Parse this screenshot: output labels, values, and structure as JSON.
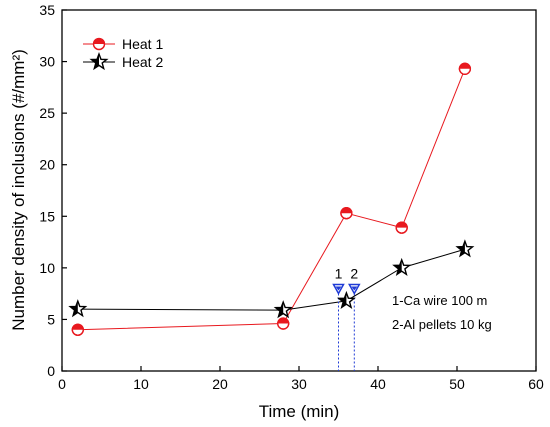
{
  "chart_data": {
    "type": "line",
    "xlabel": "Time (min)",
    "ylabel": "Number density of inclusions (#/mm²)",
    "xlim": [
      0,
      60
    ],
    "ylim": [
      0,
      35
    ],
    "xticks": [
      0,
      10,
      20,
      30,
      40,
      50,
      60
    ],
    "yticks": [
      0,
      5,
      10,
      15,
      20,
      25,
      30,
      35
    ],
    "grid": false,
    "legend_position": "top-left",
    "series": [
      {
        "name": "Heat 1",
        "color": "#e8191f",
        "marker": "half-filled-circle",
        "points": [
          [
            2,
            4.0
          ],
          [
            28,
            4.6
          ],
          [
            36,
            15.3
          ],
          [
            43,
            13.9
          ],
          [
            51,
            29.3
          ]
        ]
      },
      {
        "name": "Heat 2",
        "color": "#000000",
        "marker": "star",
        "points": [
          [
            2,
            6.0
          ],
          [
            28,
            5.9
          ],
          [
            36,
            6.8
          ],
          [
            43,
            10.0
          ],
          [
            51,
            11.8
          ]
        ]
      }
    ],
    "events": [
      {
        "label": "1",
        "x": 35,
        "y": 8.0,
        "color": "#1f3bd6",
        "marker": "triangle-down"
      },
      {
        "label": "2",
        "x": 37,
        "y": 8.0,
        "color": "#1f3bd6",
        "marker": "triangle-down"
      }
    ],
    "annotations": [
      "1-Ca wire 100 m",
      "2-Al pellets 10 kg"
    ]
  }
}
